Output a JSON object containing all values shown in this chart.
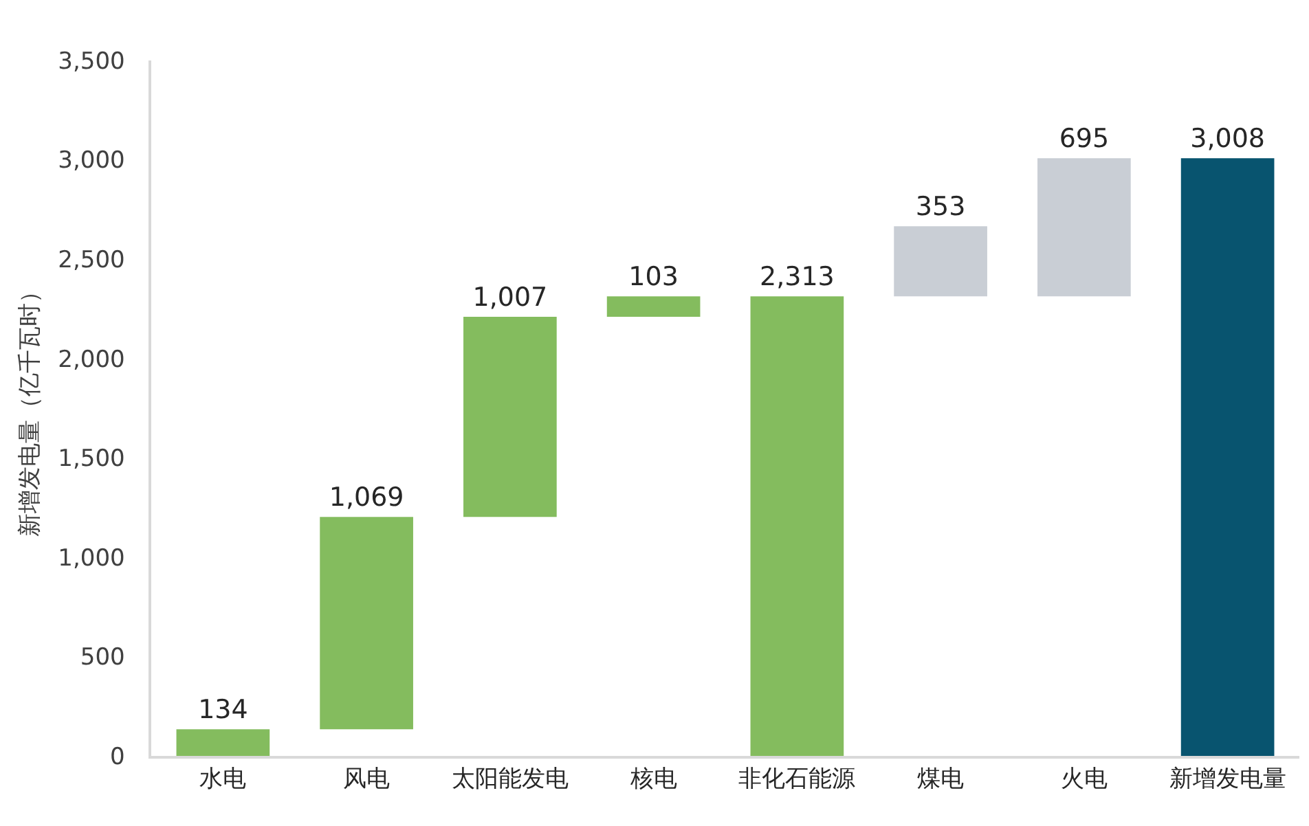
{
  "chart_data": {
    "type": "bar",
    "ylabel": "新增发电量（亿千瓦时）",
    "categories": [
      "水电",
      "风电",
      "太阳能发电",
      "核电",
      "非化石能源",
      "煤电",
      "火电",
      "新增发电量"
    ],
    "values": [
      134,
      1069,
      1007,
      103,
      2313,
      353,
      695,
      3008
    ],
    "base": [
      0,
      134,
      1203,
      2210,
      0,
      2313,
      2313,
      0
    ],
    "colors": [
      "#84bc5e",
      "#84bc5e",
      "#84bc5e",
      "#84bc5e",
      "#84bc5e",
      "#c9ced5",
      "#c9ced5",
      "#08546f"
    ],
    "value_labels": [
      "134",
      "1,069",
      "1,007",
      "103",
      "2,313",
      "353",
      "695",
      "3,008"
    ],
    "ylim": [
      0,
      3500
    ],
    "yticks": [
      0,
      {
        "value": 500,
        "label": "500"
      },
      {
        "value": 1000,
        "label": "1,000"
      },
      {
        "value": 1500,
        "label": "1,500"
      },
      {
        "value": 2000,
        "label": "2,000"
      },
      {
        "value": 2500,
        "label": "2,500"
      },
      {
        "value": 3000,
        "label": "3,000"
      },
      {
        "value": 3500,
        "label": "3,500"
      }
    ]
  }
}
